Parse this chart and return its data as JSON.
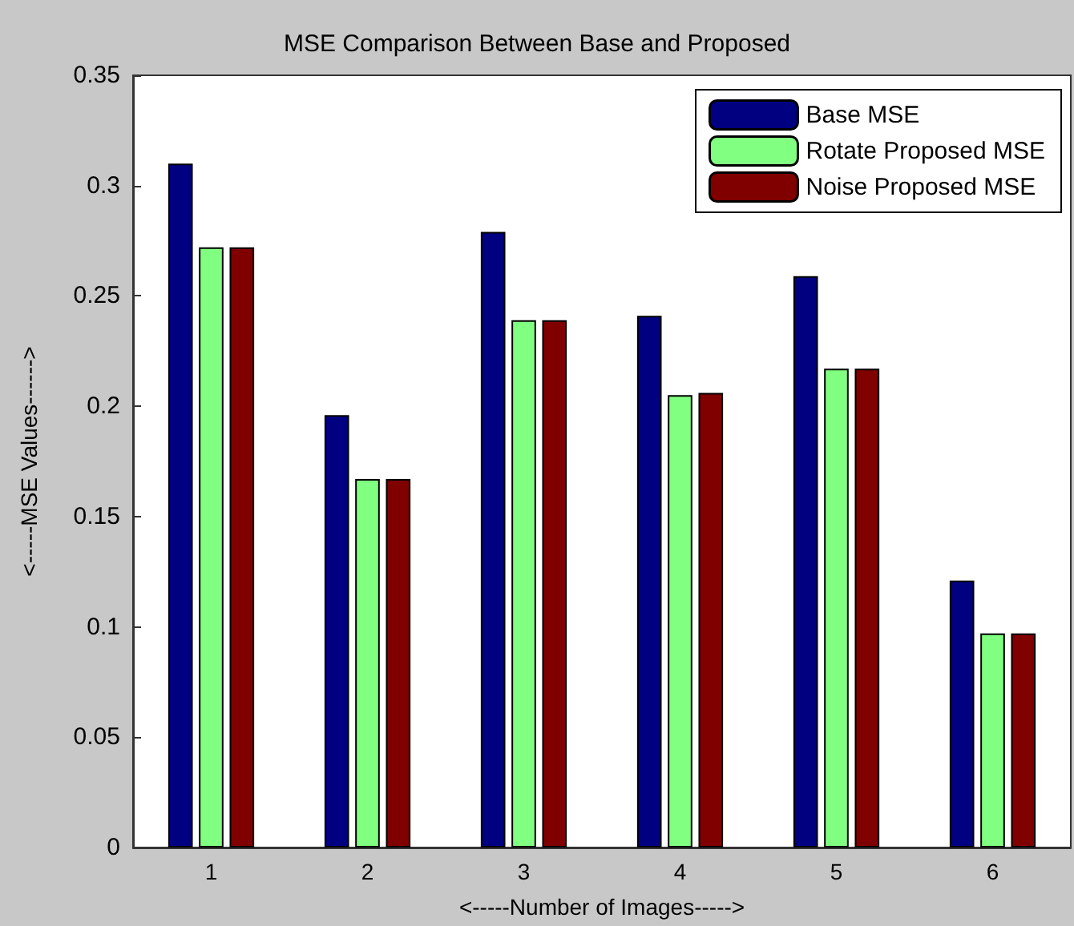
{
  "chart_data": {
    "type": "bar",
    "title": "MSE Comparison Between Base and Proposed",
    "xlabel": "<-----Number of Images----->",
    "ylabel": "<-----MSE Values------>",
    "categories": [
      "1",
      "2",
      "3",
      "4",
      "5",
      "6"
    ],
    "series": [
      {
        "name": "Base MSE",
        "color": "#000080",
        "values": [
          0.31,
          0.196,
          0.279,
          0.241,
          0.259,
          0.121
        ]
      },
      {
        "name": "Rotate Proposed MSE",
        "color": "#80ff80",
        "values": [
          0.272,
          0.167,
          0.239,
          0.205,
          0.217,
          0.097
        ]
      },
      {
        "name": "Noise Proposed MSE",
        "color": "#800000",
        "values": [
          0.272,
          0.167,
          0.239,
          0.206,
          0.217,
          0.097
        ]
      }
    ],
    "ylim": [
      0,
      0.35
    ],
    "yticks": [
      0,
      0.05,
      0.1,
      0.15,
      0.2,
      0.25,
      0.3,
      0.35
    ],
    "grid": false,
    "legend": "top right"
  }
}
